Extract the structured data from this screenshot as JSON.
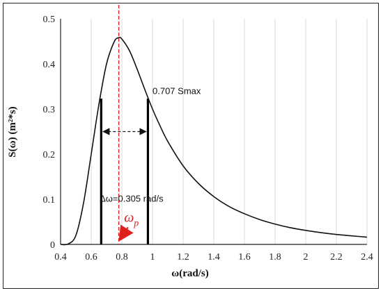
{
  "chart_data": {
    "type": "line",
    "xlabel": "ω(rad/s)",
    "ylabel": "S(ω) (m²*s)",
    "xlim": [
      0.4,
      2.4
    ],
    "ylim": [
      0,
      0.5
    ],
    "x_ticks": [
      "0.4",
      "0.6",
      "0.8",
      "1",
      "1.2",
      "1.4",
      "1.6",
      "1.8",
      "2",
      "2.2",
      "2.4"
    ],
    "y_ticks": [
      "0",
      "0.1",
      "0.2",
      "0.3",
      "0.4",
      "0.5"
    ],
    "grid": "vertical",
    "series": [
      {
        "x": [
          0.4,
          0.45,
          0.5,
          0.55,
          0.6,
          0.65,
          0.7,
          0.75,
          0.78,
          0.8,
          0.85,
          0.9,
          0.95,
          1.0,
          1.05,
          1.1,
          1.2,
          1.3,
          1.4,
          1.5,
          1.6,
          1.7,
          1.8,
          1.9,
          2.0,
          2.1,
          2.2,
          2.3,
          2.4
        ],
        "y": [
          0.0,
          0.001,
          0.02,
          0.092,
          0.2,
          0.31,
          0.4,
          0.449,
          0.458,
          0.455,
          0.429,
          0.388,
          0.343,
          0.3,
          0.262,
          0.228,
          0.174,
          0.135,
          0.106,
          0.084,
          0.068,
          0.055,
          0.045,
          0.037,
          0.031,
          0.026,
          0.022,
          0.019,
          0.016
        ]
      }
    ],
    "peak_x": 0.78,
    "bandwidth_lines": [
      {
        "x": 0.665,
        "y": 0.323
      },
      {
        "x": 0.97,
        "y": 0.323
      }
    ],
    "annotations": {
      "half_power": "0.707 Smax",
      "bandwidth": "Δω=0.305 rad/s",
      "peak_symbol": "ω",
      "peak_subscript": "p"
    }
  }
}
